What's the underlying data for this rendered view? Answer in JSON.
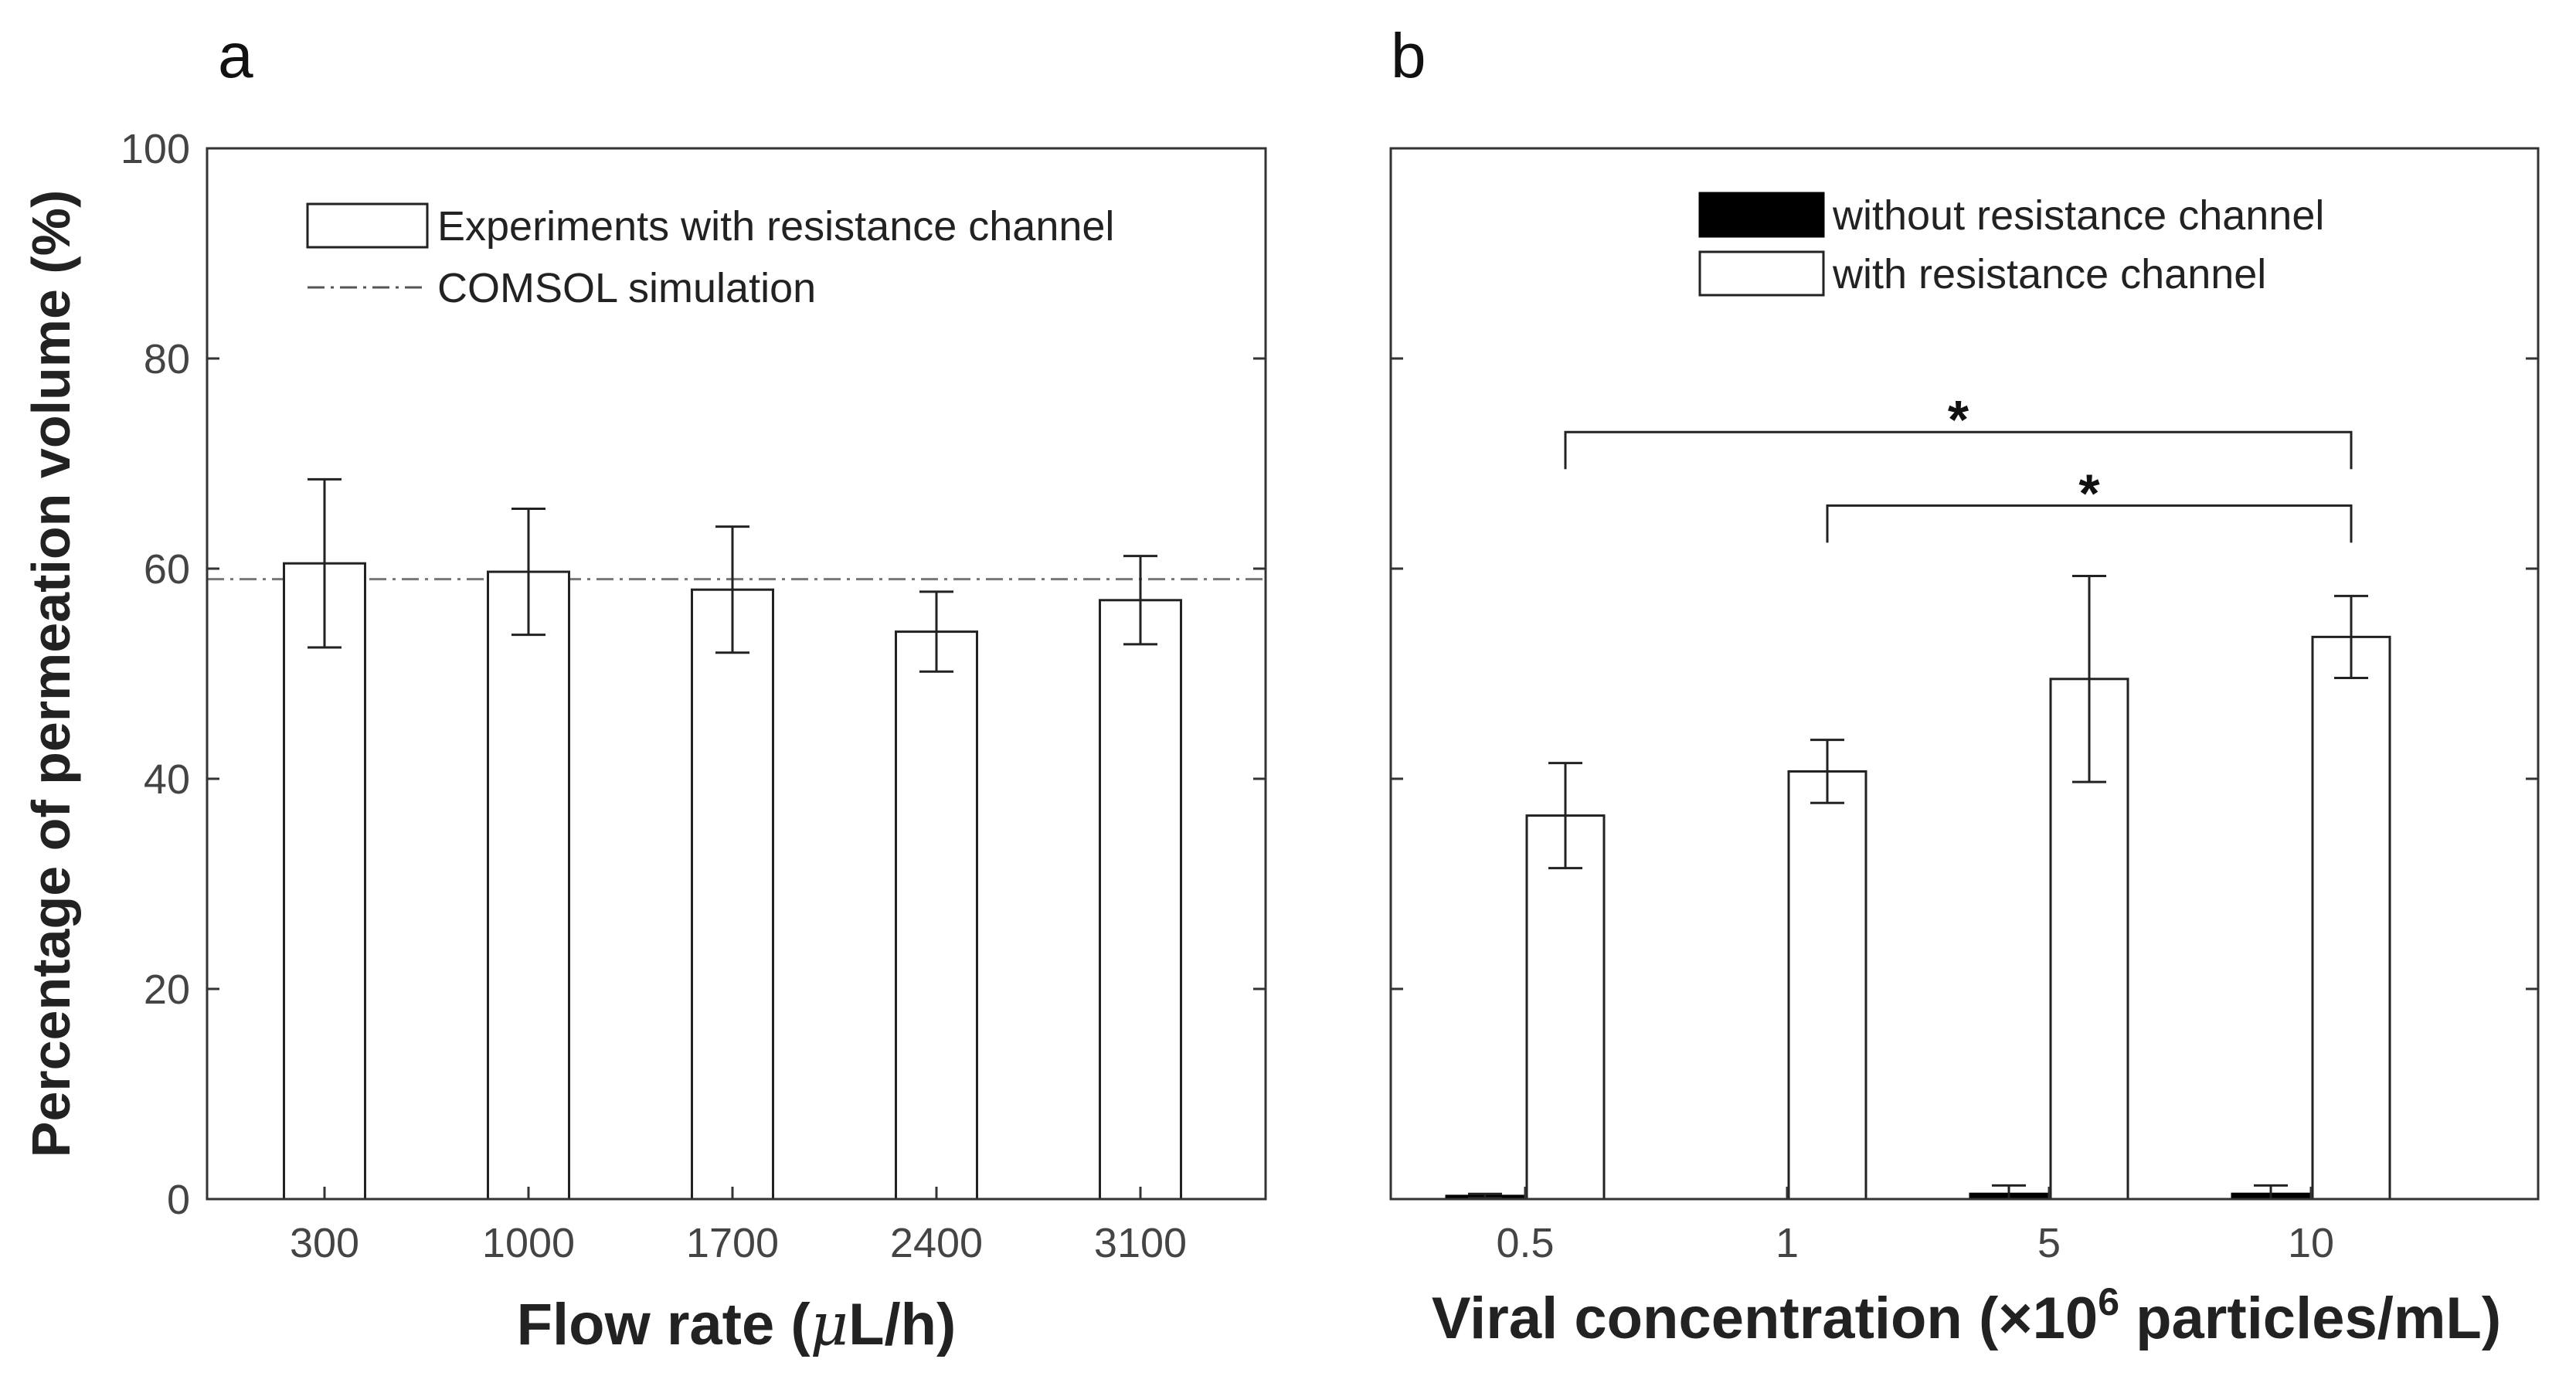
{
  "chart_data": [
    {
      "panel": "a",
      "type": "bar",
      "categories": [
        "300",
        "1000",
        "1700",
        "2400",
        "3100"
      ],
      "series": [
        {
          "name": "Experiments with resistance channel",
          "values": [
            60.5,
            59.7,
            58.0,
            54.0,
            57.0
          ],
          "err": [
            8.0,
            6.0,
            6.0,
            3.8,
            4.2
          ],
          "fill": "#ffffff"
        }
      ],
      "reference_line": {
        "name": "COMSOL simulation",
        "y": 59
      },
      "xlabel_pre": "Flow rate (",
      "xlabel_mu": "μ",
      "xlabel_post": "L/h)",
      "ylabel": "Percentage of permeation volume (%)",
      "ylim": [
        0,
        100
      ],
      "yticks": [
        "0",
        "20",
        "40",
        "60",
        "80",
        "100"
      ],
      "legend_position": "top-right"
    },
    {
      "panel": "b",
      "type": "bar",
      "categories": [
        "0.5",
        "1",
        "5",
        "10"
      ],
      "series": [
        {
          "name": "without resistance channel",
          "values": [
            0.3,
            0.0,
            0.5,
            0.5
          ],
          "err": [
            0.2,
            0.0,
            0.8,
            0.8
          ],
          "fill": "#000000"
        },
        {
          "name": "with resistance channel",
          "values": [
            36.5,
            40.7,
            49.5,
            53.5
          ],
          "err": [
            5.0,
            3.0,
            9.8,
            3.9
          ],
          "fill": "#ffffff"
        }
      ],
      "xlabel_pre": "Viral concentration (×10",
      "xlabel_sup": "6",
      "xlabel_post": " particles/mL)",
      "ylim": [
        0,
        100
      ],
      "significance": [
        {
          "from": 0,
          "to": 3,
          "y": 73,
          "label": "*"
        },
        {
          "from": 1,
          "to": 3,
          "y": 66,
          "label": "*"
        }
      ],
      "legend_position": "top-right"
    }
  ]
}
